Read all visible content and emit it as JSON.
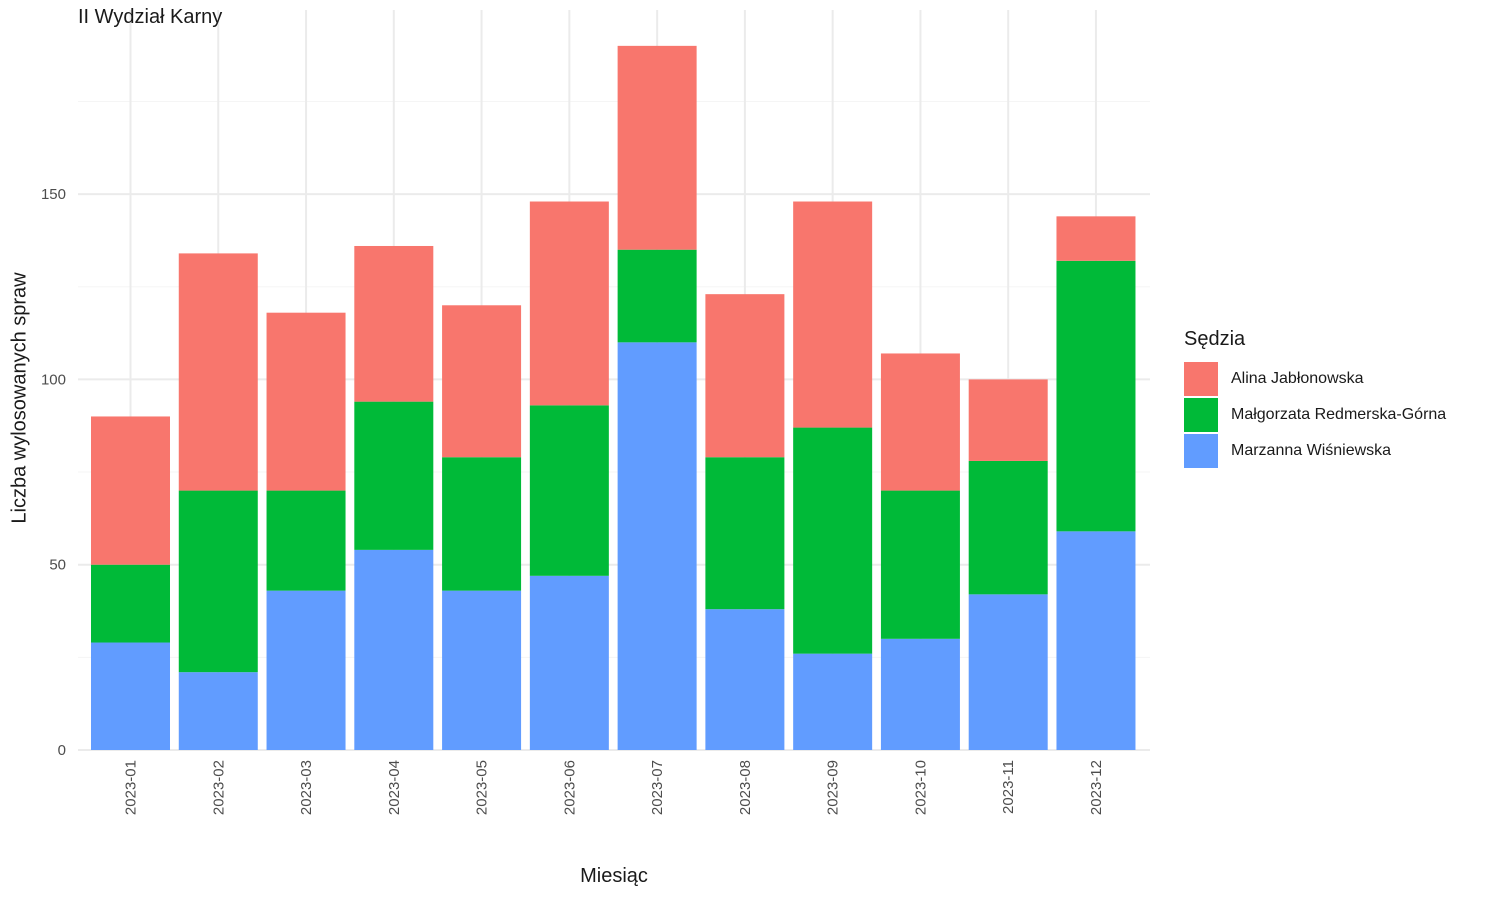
{
  "chart_data": {
    "type": "bar",
    "stacked": true,
    "title": "II Wydział Karny",
    "xlabel": "Miesiąc",
    "ylabel": "Liczba wylosowanych spraw",
    "ylim": [
      0,
      200
    ],
    "yticks": [
      0,
      50,
      100,
      150
    ],
    "grid": true,
    "legend_title": "Sędzia",
    "legend_position": "right",
    "categories": [
      "2023-01",
      "2023-02",
      "2023-03",
      "2023-04",
      "2023-05",
      "2023-06",
      "2023-07",
      "2023-08",
      "2023-09",
      "2023-10",
      "2023-11",
      "2023-12"
    ],
    "series": [
      {
        "name": "Marzanna Wiśniewska",
        "color": "#619CFF",
        "values": [
          29,
          21,
          43,
          54,
          43,
          47,
          110,
          38,
          26,
          30,
          42,
          59
        ]
      },
      {
        "name": "Małgorzata Redmerska-Górna",
        "color": "#00BA38",
        "values": [
          21,
          49,
          27,
          40,
          36,
          46,
          25,
          41,
          61,
          40,
          36,
          73
        ]
      },
      {
        "name": "Alina Jabłonowska",
        "color": "#F8766D",
        "values": [
          40,
          64,
          48,
          42,
          41,
          55,
          55,
          44,
          61,
          37,
          22,
          12
        ]
      }
    ],
    "legend_order": [
      "Alina Jabłonowska",
      "Małgorzata Redmerska-Górna",
      "Marzanna Wiśniewska"
    ]
  }
}
